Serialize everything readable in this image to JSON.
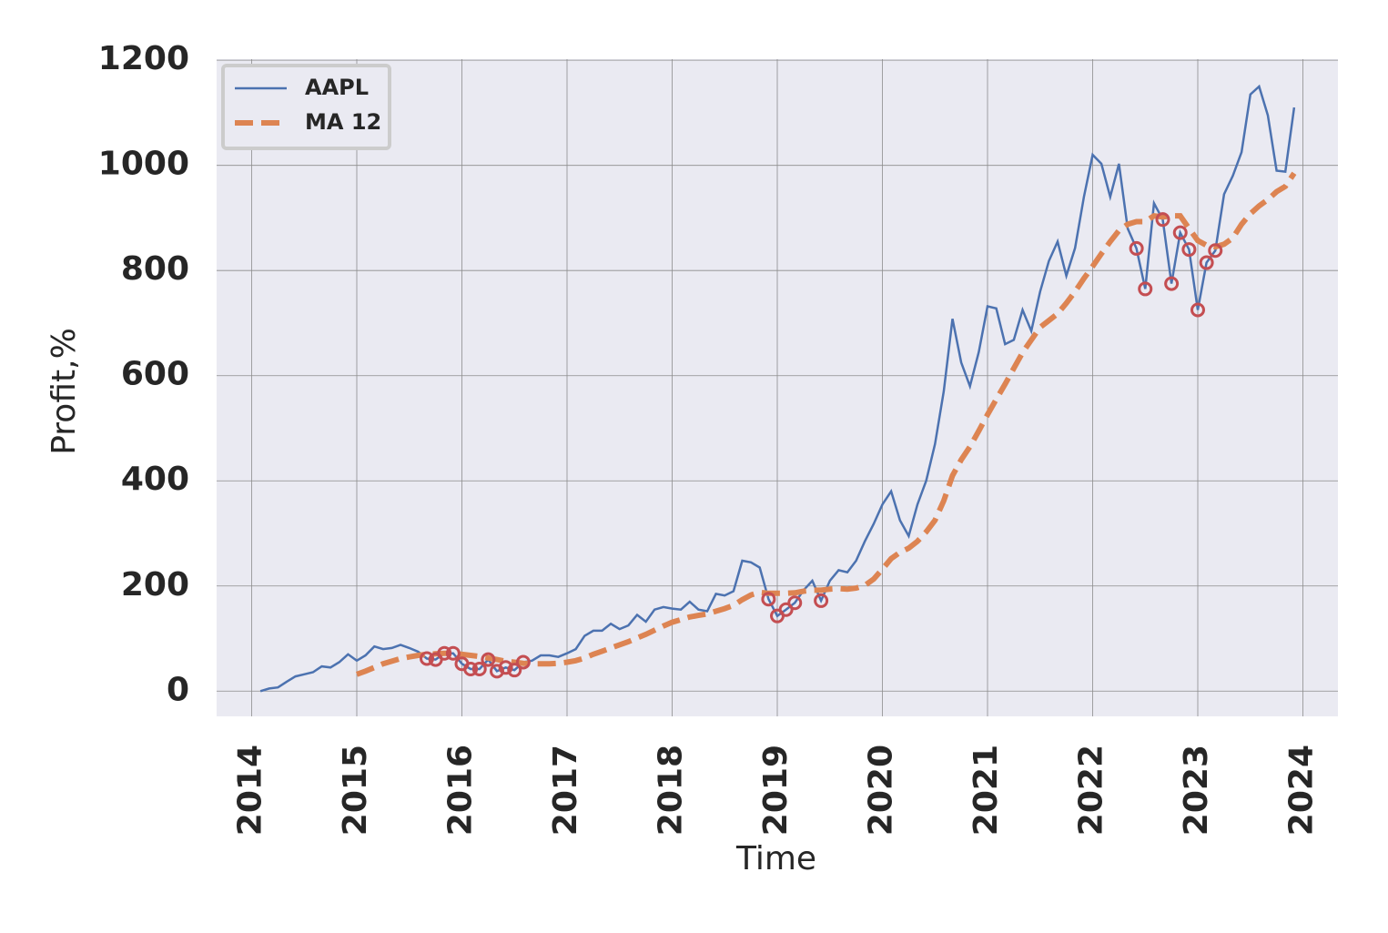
{
  "chart_data": {
    "type": "line",
    "xlabel": "Time",
    "ylabel": "Profit,%",
    "x": [
      "2014-02",
      "2014-03",
      "2014-04",
      "2014-05",
      "2014-06",
      "2014-07",
      "2014-08",
      "2014-09",
      "2014-10",
      "2014-11",
      "2014-12",
      "2015-01",
      "2015-02",
      "2015-03",
      "2015-04",
      "2015-05",
      "2015-06",
      "2015-07",
      "2015-08",
      "2015-09",
      "2015-10",
      "2015-11",
      "2015-12",
      "2016-01",
      "2016-02",
      "2016-03",
      "2016-04",
      "2016-05",
      "2016-06",
      "2016-07",
      "2016-08",
      "2016-09",
      "2016-10",
      "2016-11",
      "2016-12",
      "2017-01",
      "2017-02",
      "2017-03",
      "2017-04",
      "2017-05",
      "2017-06",
      "2017-07",
      "2017-08",
      "2017-09",
      "2017-10",
      "2017-11",
      "2017-12",
      "2018-01",
      "2018-02",
      "2018-03",
      "2018-04",
      "2018-05",
      "2018-06",
      "2018-07",
      "2018-08",
      "2018-09",
      "2018-10",
      "2018-11",
      "2018-12",
      "2019-01",
      "2019-02",
      "2019-03",
      "2019-04",
      "2019-05",
      "2019-06",
      "2019-07",
      "2019-08",
      "2019-09",
      "2019-10",
      "2019-11",
      "2019-12",
      "2020-01",
      "2020-02",
      "2020-03",
      "2020-04",
      "2020-05",
      "2020-06",
      "2020-07",
      "2020-08",
      "2020-09",
      "2020-10",
      "2020-11",
      "2020-12",
      "2021-01",
      "2021-02",
      "2021-03",
      "2021-04",
      "2021-05",
      "2021-06",
      "2021-07",
      "2021-08",
      "2021-09",
      "2021-10",
      "2021-11",
      "2021-12",
      "2022-01",
      "2022-02",
      "2022-03",
      "2022-04",
      "2022-05",
      "2022-06",
      "2022-07",
      "2022-08",
      "2022-09",
      "2022-10",
      "2022-11",
      "2022-12",
      "2023-01",
      "2023-02",
      "2023-03",
      "2023-04",
      "2023-05",
      "2023-06",
      "2023-07",
      "2023-08",
      "2023-09",
      "2023-10",
      "2023-11",
      "2023-12"
    ],
    "series": [
      {
        "name": "AAPL",
        "color": "#4c72b0",
        "dash": false,
        "values": [
          0,
          5,
          7,
          18,
          28,
          32,
          36,
          47,
          45,
          55,
          70,
          58,
          68,
          85,
          80,
          82,
          88,
          82,
          75,
          62,
          60,
          72,
          72,
          52,
          42,
          42,
          60,
          38,
          45,
          40,
          55,
          58,
          68,
          68,
          65,
          72,
          80,
          105,
          115,
          115,
          128,
          118,
          125,
          145,
          132,
          155,
          160,
          157,
          155,
          170,
          155,
          152,
          185,
          182,
          190,
          248,
          245,
          235,
          175,
          143,
          155,
          168,
          192,
          210,
          172,
          210,
          230,
          226,
          248,
          285,
          318,
          355,
          380,
          325,
          295,
          355,
          400,
          470,
          570,
          708,
          625,
          580,
          645,
          732,
          728,
          660,
          668,
          725,
          685,
          760,
          818,
          855,
          790,
          843,
          940,
          1020,
          1003,
          940,
          1003,
          880,
          842,
          765,
          928,
          897,
          775,
          872,
          840,
          725,
          815,
          838,
          945,
          980,
          1025,
          1135,
          1150,
          1095,
          990,
          988,
          1110
        ]
      },
      {
        "name": "MA 12",
        "color": "#dd8452",
        "dash": true,
        "values": [
          null,
          null,
          null,
          null,
          null,
          null,
          null,
          null,
          null,
          null,
          null,
          32,
          38,
          45,
          52,
          57,
          62,
          65,
          68,
          70,
          71,
          72,
          72,
          70,
          68,
          66,
          63,
          60,
          57,
          55,
          53,
          52,
          52,
          52,
          53,
          55,
          58,
          63,
          70,
          76,
          82,
          88,
          94,
          101,
          108,
          116,
          124,
          131,
          136,
          141,
          144,
          147,
          152,
          157,
          163,
          174,
          183,
          188,
          186,
          186,
          186,
          187,
          190,
          192,
          192,
          194,
          195,
          194,
          196,
          201,
          213,
          232,
          252,
          264,
          272,
          285,
          303,
          325,
          362,
          410,
          440,
          465,
          495,
          526,
          555,
          584,
          614,
          644,
          668,
          692,
          705,
          718,
          738,
          760,
          785,
          808,
          832,
          855,
          876,
          888,
          893,
          893,
          904,
          902,
          904,
          904,
          880,
          857,
          848,
          845,
          850,
          862,
          888,
          908,
          923,
          935,
          950,
          960,
          985
        ]
      }
    ],
    "markers": {
      "color": "#c44e52",
      "x": [
        "2015-09",
        "2015-10",
        "2015-11",
        "2015-12",
        "2016-01",
        "2016-02",
        "2016-03",
        "2016-04",
        "2016-05",
        "2016-06",
        "2016-07",
        "2016-08",
        "2018-12",
        "2019-01",
        "2019-02",
        "2019-03",
        "2019-06",
        "2022-06",
        "2022-07",
        "2022-09",
        "2022-10",
        "2022-11",
        "2022-12",
        "2023-01",
        "2023-02",
        "2023-03"
      ],
      "values": [
        62,
        60,
        72,
        72,
        52,
        42,
        42,
        60,
        38,
        45,
        40,
        55,
        175,
        143,
        155,
        168,
        172,
        842,
        765,
        897,
        775,
        872,
        840,
        725,
        815,
        838
      ]
    },
    "xlim": [
      "2013-09",
      "2024-05"
    ],
    "xticks": [
      "2014",
      "2015",
      "2016",
      "2017",
      "2018",
      "2019",
      "2020",
      "2021",
      "2022",
      "2023",
      "2024"
    ],
    "ylim": [
      -48,
      1202
    ],
    "yticks": [
      0,
      200,
      400,
      600,
      800,
      1000,
      1200
    ],
    "grid": true,
    "legend": "upper-left"
  }
}
